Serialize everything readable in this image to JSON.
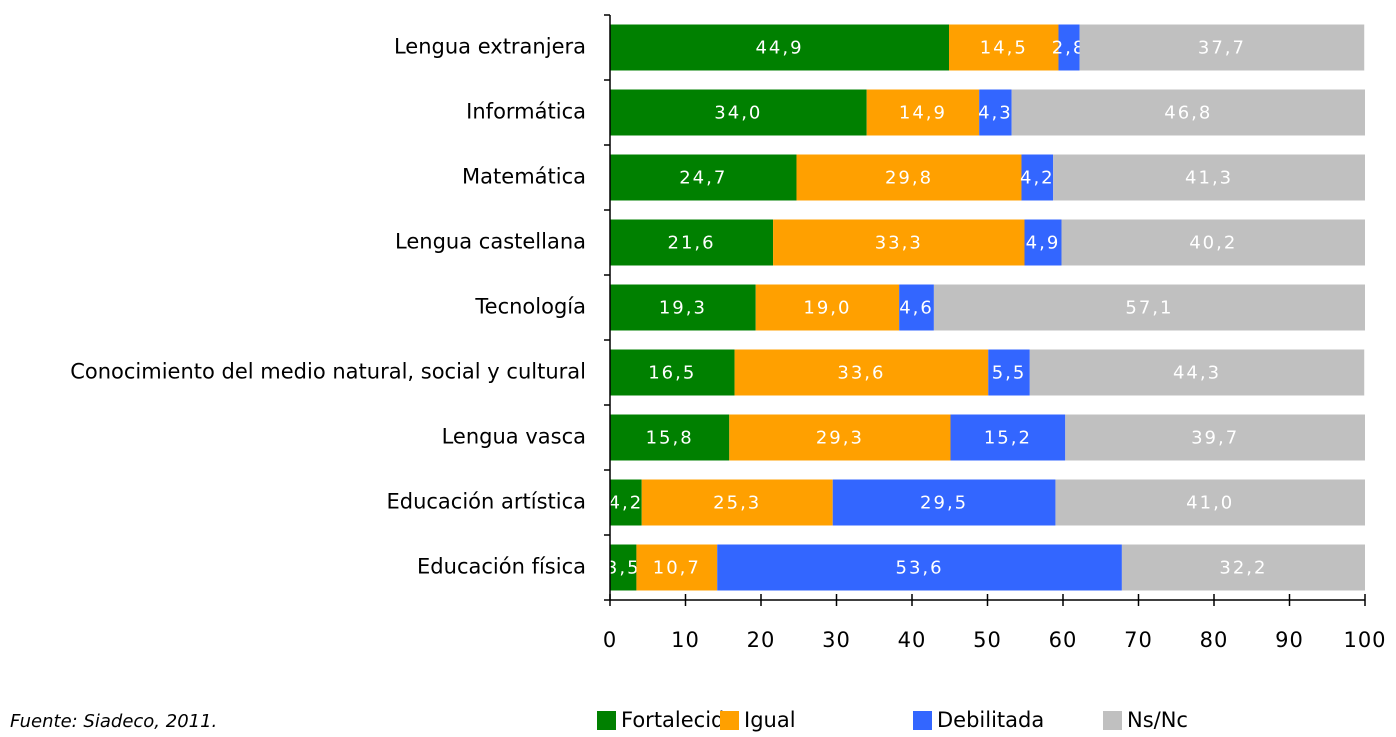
{
  "chart_data": {
    "type": "stacked_barh",
    "categories": [
      "Lengua extranjera",
      "Informática",
      "Matemática",
      "Lengua castellana",
      "Tecnología",
      "Conocimiento del medio natural, social y cultural",
      "Lengua vasca",
      "Educación artística",
      "Educación física"
    ],
    "series": [
      {
        "name": "Fortalecida",
        "color": "#008000",
        "values": [
          44.9,
          34.0,
          24.7,
          21.6,
          19.3,
          16.5,
          15.8,
          4.2,
          3.5
        ],
        "value_labels": [
          "44,9",
          "34,0",
          "24,7",
          "21,6",
          "19,3",
          "16,5",
          "15,8",
          "4,2",
          "3,5"
        ]
      },
      {
        "name": "Igual",
        "color": "#ffa000",
        "values": [
          14.5,
          14.9,
          29.8,
          33.3,
          19.0,
          33.6,
          29.3,
          25.3,
          10.7
        ],
        "value_labels": [
          "14,5",
          "14,9",
          "29,8",
          "33,3",
          "19,0",
          "33,6",
          "29,3",
          "25,3",
          "10,7"
        ]
      },
      {
        "name": "Debilitada",
        "color": "#3366ff",
        "values": [
          2.8,
          4.3,
          4.2,
          4.9,
          4.6,
          5.5,
          15.2,
          29.5,
          53.6
        ],
        "value_labels": [
          "2,8",
          "4,3",
          "4,2",
          "4,9",
          "4,6",
          "5,5",
          "15,2",
          "29,5",
          "53,6"
        ]
      },
      {
        "name": "Ns/Nc",
        "color": "#c0c0c0",
        "values": [
          37.7,
          46.8,
          41.3,
          40.2,
          57.1,
          44.3,
          39.7,
          41.0,
          32.2
        ],
        "value_labels": [
          "37,7",
          "46,8",
          "41,3",
          "40,2",
          "57,1",
          "44,3",
          "39,7",
          "41,0",
          "32,2"
        ]
      }
    ],
    "xlim": [
      0,
      100
    ],
    "xticks": [
      0,
      10,
      20,
      30,
      40,
      50,
      60,
      70,
      80,
      90,
      100
    ],
    "legend": "bottom",
    "source": "Fuente: Siadeco, 2011."
  }
}
